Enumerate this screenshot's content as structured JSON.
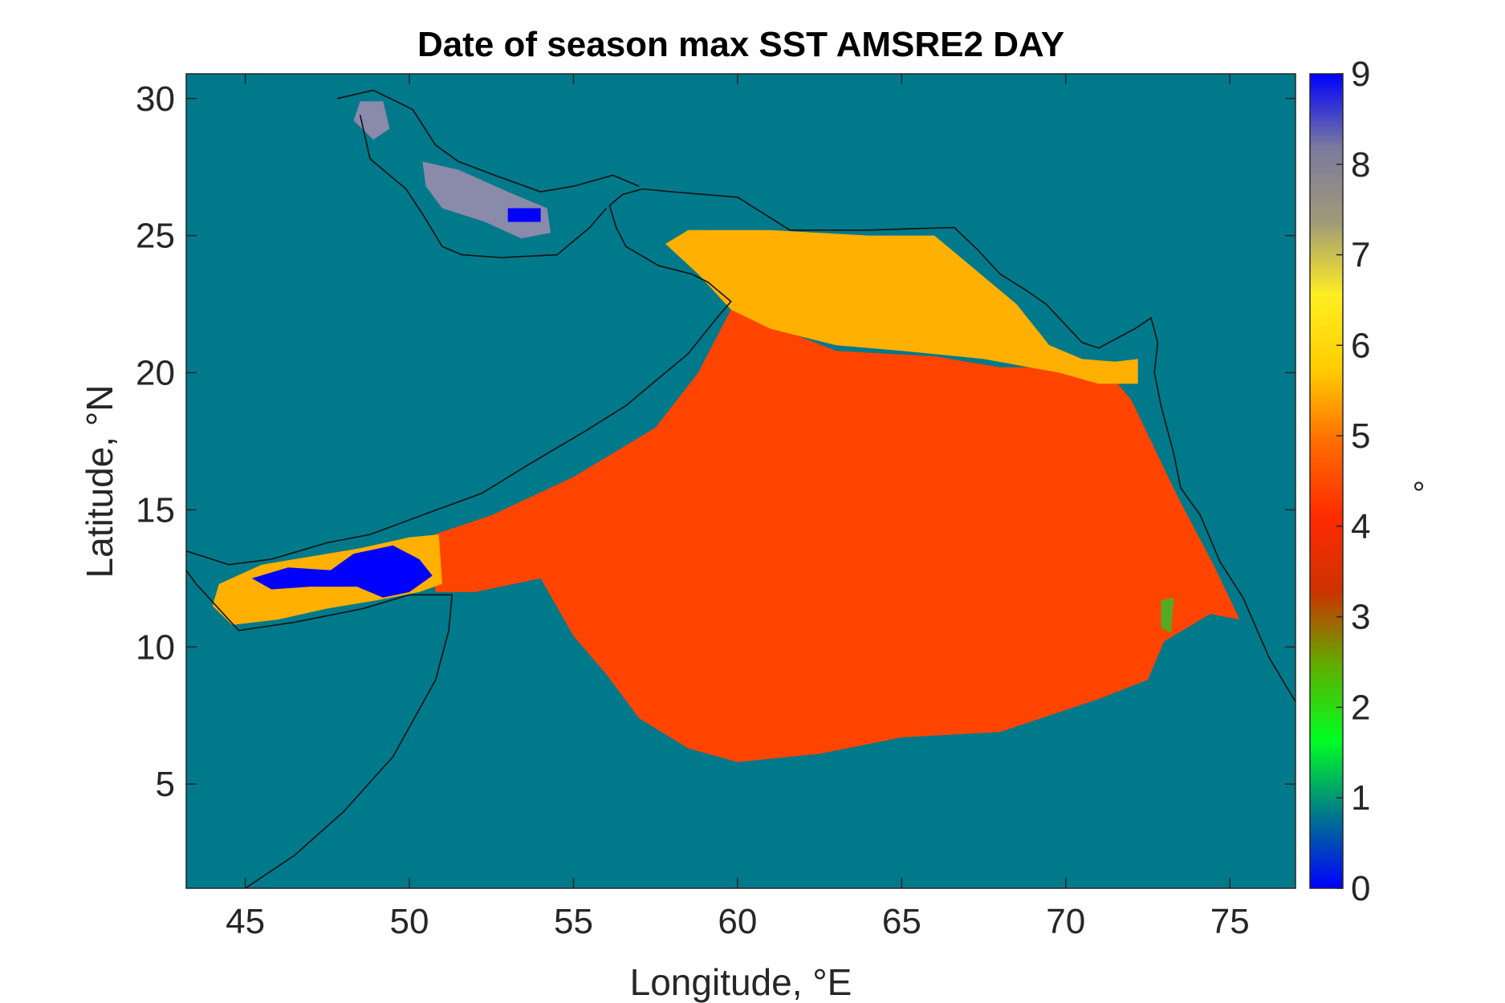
{
  "chart_data": {
    "type": "heatmap",
    "title": "Date of season max SST AMSRE2 DAY",
    "xlabel": "Longitude, °E",
    "ylabel": "Latitude, °N",
    "colorbar_label": "°",
    "xlim": [
      43.2,
      77
    ],
    "ylim": [
      1.2,
      30.9
    ],
    "xticks": [
      45,
      50,
      55,
      60,
      65,
      70,
      75
    ],
    "xtick_labels": [
      "45",
      "50",
      "55",
      "60",
      "65",
      "70",
      "75"
    ],
    "yticks": [
      5,
      10,
      15,
      20,
      25,
      30
    ],
    "ytick_labels": [
      "5",
      "10",
      "15",
      "20",
      "25",
      "30"
    ],
    "color_range": [
      0,
      9
    ],
    "colorbar_ticks": [
      0,
      1,
      2,
      3,
      4,
      5,
      6,
      7,
      8,
      9
    ],
    "colorbar_tick_labels": [
      "0",
      "1",
      "2",
      "3",
      "4",
      "5",
      "6",
      "7",
      "8",
      "9"
    ],
    "colormap_stops": [
      "#0000ff",
      "#00798a",
      "#00ff22",
      "#5faf00",
      "#cc3300",
      "#ff2a00",
      "#ff6a00",
      "#ffcc00",
      "#ffee22",
      "#a09a78",
      "#7a7a9e",
      "#0000ff"
    ],
    "colors": {
      "land_mask": "#00798a",
      "value_4": "#cc3300",
      "value_5": "#ff4400",
      "value_6": "#ffb000",
      "value_7": "#eeee22",
      "value_8": "#8a8aaa",
      "value_9": "#0000ff",
      "value_3": "#55aa22"
    },
    "regions": [
      {
        "value": 5,
        "polygon": [
          [
            50.5,
            14.0
          ],
          [
            52.5,
            14.8
          ],
          [
            55,
            16.2
          ],
          [
            57.5,
            18.0
          ],
          [
            58.8,
            20.0
          ],
          [
            59.8,
            22.3
          ],
          [
            63,
            20.8
          ],
          [
            66,
            20.6
          ],
          [
            68,
            20.2
          ],
          [
            70,
            20.2
          ],
          [
            71.3,
            20.0
          ],
          [
            72,
            19.0
          ],
          [
            72.8,
            17.0
          ],
          [
            73.4,
            15.5
          ],
          [
            74.5,
            13.0
          ],
          [
            75.3,
            11.0
          ],
          [
            74.4,
            11.2
          ],
          [
            73,
            10.2
          ],
          [
            72.5,
            8.8
          ],
          [
            71,
            8.1
          ],
          [
            70,
            7.7
          ],
          [
            68,
            6.9
          ],
          [
            65,
            6.7
          ],
          [
            62.5,
            6.1
          ],
          [
            60,
            5.8
          ],
          [
            58.5,
            6.3
          ],
          [
            57,
            7.4
          ],
          [
            56,
            9.0
          ],
          [
            55,
            10.4
          ],
          [
            54,
            12.5
          ],
          [
            52,
            12.0
          ],
          [
            50.8,
            12.0
          ]
        ]
      },
      {
        "value": 6,
        "polygon": [
          [
            57.8,
            24.7
          ],
          [
            58.5,
            25.2
          ],
          [
            61,
            25.2
          ],
          [
            64,
            25.0
          ],
          [
            66,
            25.0
          ],
          [
            67,
            24.0
          ],
          [
            68.5,
            22.5
          ],
          [
            69.5,
            21.0
          ],
          [
            70.5,
            20.5
          ],
          [
            71.5,
            20.4
          ],
          [
            72.2,
            20.5
          ],
          [
            72.2,
            19.6
          ],
          [
            71,
            19.6
          ],
          [
            69.8,
            20.0
          ],
          [
            67.5,
            20.5
          ],
          [
            65,
            20.8
          ],
          [
            63,
            21.0
          ],
          [
            61,
            21.6
          ],
          [
            59.8,
            22.3
          ],
          [
            58.8,
            23.6
          ]
        ]
      },
      {
        "value": 6,
        "polygon": [
          [
            44.2,
            12.3
          ],
          [
            45.5,
            13.0
          ],
          [
            47,
            13.3
          ],
          [
            48.5,
            13.6
          ],
          [
            50,
            14.0
          ],
          [
            50.9,
            14.1
          ],
          [
            51.0,
            12.3
          ],
          [
            50.3,
            12.0
          ],
          [
            49,
            11.7
          ],
          [
            47.5,
            11.4
          ],
          [
            46,
            11.0
          ],
          [
            44.6,
            10.8
          ],
          [
            44.0,
            11.5
          ]
        ]
      },
      {
        "value": 9,
        "polygon": [
          [
            45.2,
            12.5
          ],
          [
            46.3,
            12.9
          ],
          [
            47.6,
            12.8
          ],
          [
            48.3,
            13.4
          ],
          [
            49.5,
            13.7
          ],
          [
            50.3,
            13.2
          ],
          [
            50.7,
            12.6
          ],
          [
            50.0,
            12.0
          ],
          [
            49.2,
            11.8
          ],
          [
            48.4,
            12.2
          ],
          [
            47.0,
            12.2
          ],
          [
            45.8,
            12.1
          ]
        ]
      },
      {
        "value": 8,
        "polygon": [
          [
            48.5,
            29.9
          ],
          [
            49.2,
            29.9
          ],
          [
            49.4,
            28.9
          ],
          [
            48.9,
            28.5
          ],
          [
            48.3,
            29.2
          ]
        ]
      },
      {
        "value": 8,
        "polygon": [
          [
            50.4,
            27.7
          ],
          [
            51.5,
            27.4
          ],
          [
            53,
            26.6
          ],
          [
            54.2,
            26.0
          ],
          [
            54.3,
            25.1
          ],
          [
            53.4,
            24.9
          ],
          [
            52.3,
            25.5
          ],
          [
            51.0,
            26.0
          ],
          [
            50.5,
            26.8
          ]
        ]
      },
      {
        "value": 9,
        "polygon": [
          [
            53.0,
            26.0
          ],
          [
            54.0,
            26.0
          ],
          [
            54.0,
            25.5
          ],
          [
            53.0,
            25.5
          ]
        ]
      },
      {
        "value": 3,
        "polygon": [
          [
            72.9,
            11.7
          ],
          [
            73.3,
            11.8
          ],
          [
            73.2,
            10.5
          ],
          [
            72.9,
            10.7
          ]
        ]
      }
    ],
    "coastline": [
      [
        [
          45.0,
          1.2
        ],
        [
          46.5,
          2.4
        ],
        [
          48,
          4.0
        ],
        [
          49.5,
          6.0
        ],
        [
          50.8,
          8.8
        ],
        [
          51.2,
          10.6
        ],
        [
          51.3,
          11.9
        ],
        [
          50.0,
          11.9
        ],
        [
          48.6,
          11.4
        ],
        [
          46.5,
          10.9
        ],
        [
          44.8,
          10.6
        ],
        [
          43.5,
          12.3
        ],
        [
          43.2,
          12.8
        ]
      ],
      [
        [
          43.2,
          13.5
        ],
        [
          44.5,
          13.0
        ],
        [
          45.8,
          13.2
        ],
        [
          47.5,
          13.8
        ],
        [
          48.8,
          14.1
        ],
        [
          50.6,
          14.9
        ],
        [
          52.2,
          15.6
        ],
        [
          53.7,
          16.7
        ],
        [
          55.4,
          17.9
        ],
        [
          56.6,
          18.8
        ],
        [
          57.7,
          19.9
        ],
        [
          58.5,
          20.7
        ],
        [
          59.3,
          21.9
        ],
        [
          59.8,
          22.6
        ],
        [
          59.1,
          23.3
        ],
        [
          58.6,
          23.6
        ],
        [
          57.6,
          23.9
        ],
        [
          56.6,
          24.6
        ],
        [
          56.3,
          25.3
        ],
        [
          56.1,
          26.1
        ],
        [
          56.5,
          26.5
        ],
        [
          57.1,
          26.7
        ],
        [
          58,
          26.6
        ],
        [
          60,
          26.4
        ],
        [
          61.6,
          25.2
        ],
        [
          64,
          25.2
        ],
        [
          66.6,
          25.3
        ],
        [
          67.3,
          24.5
        ],
        [
          68,
          23.6
        ],
        [
          68.8,
          23.0
        ],
        [
          69.4,
          22.5
        ],
        [
          70.5,
          21.1
        ],
        [
          71.0,
          20.9
        ],
        [
          72.1,
          21.6
        ],
        [
          72.6,
          22.0
        ],
        [
          72.8,
          21.1
        ],
        [
          72.7,
          20.0
        ],
        [
          72.9,
          18.8
        ],
        [
          73.3,
          17.0
        ],
        [
          73.5,
          15.8
        ],
        [
          74.1,
          14.8
        ],
        [
          74.7,
          13.1
        ],
        [
          75.4,
          11.8
        ],
        [
          76.2,
          9.6
        ],
        [
          77,
          8.0
        ]
      ],
      [
        [
          47.8,
          30.0
        ],
        [
          48.9,
          30.3
        ],
        [
          50.1,
          29.6
        ],
        [
          50.8,
          28.3
        ],
        [
          51.5,
          27.7
        ],
        [
          52.6,
          27.2
        ],
        [
          54.0,
          26.6
        ],
        [
          55.0,
          26.8
        ],
        [
          56.2,
          27.2
        ],
        [
          57.0,
          26.8
        ]
      ],
      [
        [
          48.5,
          29.4
        ],
        [
          48.8,
          27.8
        ],
        [
          49.9,
          26.7
        ],
        [
          50.5,
          25.6
        ],
        [
          51.0,
          24.6
        ],
        [
          51.6,
          24.3
        ],
        [
          52.8,
          24.2
        ],
        [
          54.5,
          24.3
        ],
        [
          55.5,
          25.3
        ],
        [
          56.0,
          26.0
        ]
      ]
    ],
    "grid": false
  }
}
